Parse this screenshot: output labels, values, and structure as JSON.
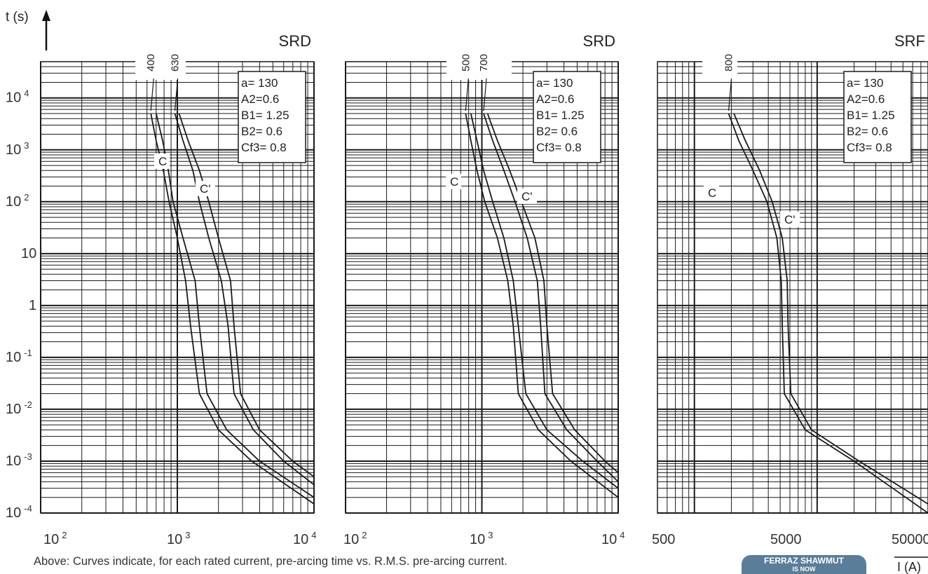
{
  "y_axis_label": "t (s)",
  "x_axis_label": "I (A)",
  "caption": "Above: Curves indicate, for each rated current, pre-arcing time vs. R.M.S. pre-arcing current.",
  "badge": {
    "line1": "FERRAZ SHAWMUT",
    "line2": "IS NOW"
  },
  "y_ticks": [
    {
      "base": "10",
      "exp": "4"
    },
    {
      "base": "10",
      "exp": "3"
    },
    {
      "base": "10",
      "exp": "2"
    },
    {
      "base": "10",
      "exp": ""
    },
    {
      "base": "1",
      "exp": ""
    },
    {
      "base": "10",
      "exp": "-1"
    },
    {
      "base": "10",
      "exp": "-2"
    },
    {
      "base": "10",
      "exp": "-3"
    },
    {
      "base": "10",
      "exp": "-4"
    }
  ],
  "params": [
    "a= 130",
    "A2=0.6",
    "B1= 1.25",
    "B2= 0.6",
    "Cf3= 0.8"
  ],
  "colors": {
    "grid": "#1a1a1a",
    "curve": "#1a1a1a",
    "text": "#222222"
  },
  "chart_data": [
    {
      "type": "line",
      "title": "SRD",
      "x_scale": "log",
      "y_scale": "log",
      "xlim": [
        100,
        10000
      ],
      "ylim": [
        0.0001,
        50000
      ],
      "x_tick_labels": [
        {
          "base": "10",
          "exp": "2"
        },
        {
          "base": "10",
          "exp": "3"
        },
        {
          "base": "10",
          "exp": "4"
        }
      ],
      "marker_labels": [
        "C",
        "C'"
      ],
      "series": [
        {
          "name": "400",
          "points": [
            [
              640,
              5000
            ],
            [
              700,
              1500
            ],
            [
              790,
              400
            ],
            [
              870,
              100
            ],
            [
              1000,
              20
            ],
            [
              1150,
              3
            ],
            [
              1250,
              0.4
            ],
            [
              1450,
              0.02
            ],
            [
              2000,
              0.004
            ],
            [
              3500,
              0.001
            ],
            [
              10000,
              0.00015
            ]
          ]
        },
        {
          "name": "",
          "points": [
            [
              700,
              5000
            ],
            [
              780,
              1500
            ],
            [
              860,
              400
            ],
            [
              930,
              100
            ],
            [
              1100,
              20
            ],
            [
              1350,
              3
            ],
            [
              1450,
              0.4
            ],
            [
              1650,
              0.02
            ],
            [
              2300,
              0.004
            ],
            [
              4000,
              0.001
            ],
            [
              10000,
              0.0002
            ]
          ]
        },
        {
          "name": "630",
          "points": [
            [
              960,
              5000
            ],
            [
              1100,
              1500
            ],
            [
              1300,
              400
            ],
            [
              1450,
              100
            ],
            [
              1700,
              20
            ],
            [
              2100,
              3
            ],
            [
              2350,
              0.4
            ],
            [
              2600,
              0.02
            ],
            [
              3600,
              0.004
            ],
            [
              6000,
              0.001
            ],
            [
              10000,
              0.00035
            ]
          ]
        },
        {
          "name": "",
          "points": [
            [
              1030,
              5000
            ],
            [
              1200,
              1500
            ],
            [
              1450,
              400
            ],
            [
              1700,
              100
            ],
            [
              2000,
              20
            ],
            [
              2450,
              3
            ],
            [
              2600,
              0.4
            ],
            [
              2900,
              0.02
            ],
            [
              4000,
              0.004
            ],
            [
              7000,
              0.001
            ],
            [
              10000,
              0.0005
            ]
          ]
        }
      ]
    },
    {
      "type": "line",
      "title": "SRD",
      "x_scale": "log",
      "y_scale": "log",
      "xlim": [
        100,
        10000
      ],
      "ylim": [
        0.0001,
        50000
      ],
      "x_tick_labels": [
        {
          "base": "10",
          "exp": "2"
        },
        {
          "base": "10",
          "exp": "3"
        },
        {
          "base": "10",
          "exp": "4"
        }
      ],
      "marker_labels": [
        "C",
        "C'"
      ],
      "series": [
        {
          "name": "500",
          "points": [
            [
              760,
              5000
            ],
            [
              830,
              1500
            ],
            [
              920,
              400
            ],
            [
              1050,
              100
            ],
            [
              1300,
              20
            ],
            [
              1550,
              3
            ],
            [
              1700,
              0.4
            ],
            [
              1850,
              0.02
            ],
            [
              2600,
              0.004
            ],
            [
              4500,
              0.001
            ],
            [
              10000,
              0.0002
            ]
          ]
        },
        {
          "name": "",
          "points": [
            [
              830,
              5000
            ],
            [
              920,
              1500
            ],
            [
              1030,
              400
            ],
            [
              1200,
              100
            ],
            [
              1450,
              20
            ],
            [
              1700,
              3
            ],
            [
              1850,
              0.4
            ],
            [
              2100,
              0.02
            ],
            [
              3000,
              0.004
            ],
            [
              5500,
              0.001
            ],
            [
              10000,
              0.0003
            ]
          ]
        },
        {
          "name": "700",
          "points": [
            [
              1030,
              5000
            ],
            [
              1200,
              1500
            ],
            [
              1450,
              400
            ],
            [
              1750,
              100
            ],
            [
              2150,
              20
            ],
            [
              2550,
              3
            ],
            [
              2700,
              0.4
            ],
            [
              2900,
              0.02
            ],
            [
              4200,
              0.004
            ],
            [
              7000,
              0.001
            ],
            [
              10000,
              0.0004
            ]
          ]
        },
        {
          "name": "",
          "points": [
            [
              1100,
              5000
            ],
            [
              1300,
              1500
            ],
            [
              1600,
              400
            ],
            [
              1950,
              100
            ],
            [
              2450,
              20
            ],
            [
              2850,
              3
            ],
            [
              3000,
              0.4
            ],
            [
              3300,
              0.02
            ],
            [
              4800,
              0.004
            ],
            [
              8000,
              0.001
            ],
            [
              10000,
              0.0006
            ]
          ]
        }
      ]
    },
    {
      "type": "line",
      "title": "SRF",
      "x_scale": "log",
      "y_scale": "log",
      "xlim": [
        500,
        80000
      ],
      "ylim": [
        0.0001,
        50000
      ],
      "x_tick_labels": [
        {
          "base": "500",
          "exp": ""
        },
        {
          "base": "5000",
          "exp": ""
        },
        {
          "base": "50000",
          "exp": ""
        }
      ],
      "marker_labels": [
        "C",
        "C'"
      ],
      "series": [
        {
          "name": "800",
          "points": [
            [
              1900,
              5000
            ],
            [
              2300,
              1500
            ],
            [
              3000,
              400
            ],
            [
              3900,
              100
            ],
            [
              4700,
              20
            ],
            [
              5100,
              3
            ],
            [
              5200,
              0.4
            ],
            [
              5400,
              0.02
            ],
            [
              8000,
              0.004
            ],
            [
              20000,
              0.001
            ],
            [
              80000,
              0.0001
            ]
          ]
        },
        {
          "name": "",
          "points": [
            [
              2100,
              5000
            ],
            [
              2600,
              1500
            ],
            [
              3400,
              400
            ],
            [
              4300,
              100
            ],
            [
              5200,
              20
            ],
            [
              5700,
              3
            ],
            [
              5800,
              0.4
            ],
            [
              6100,
              0.02
            ],
            [
              9000,
              0.004
            ],
            [
              22000,
              0.001
            ],
            [
              80000,
              0.00015
            ]
          ]
        }
      ]
    }
  ]
}
